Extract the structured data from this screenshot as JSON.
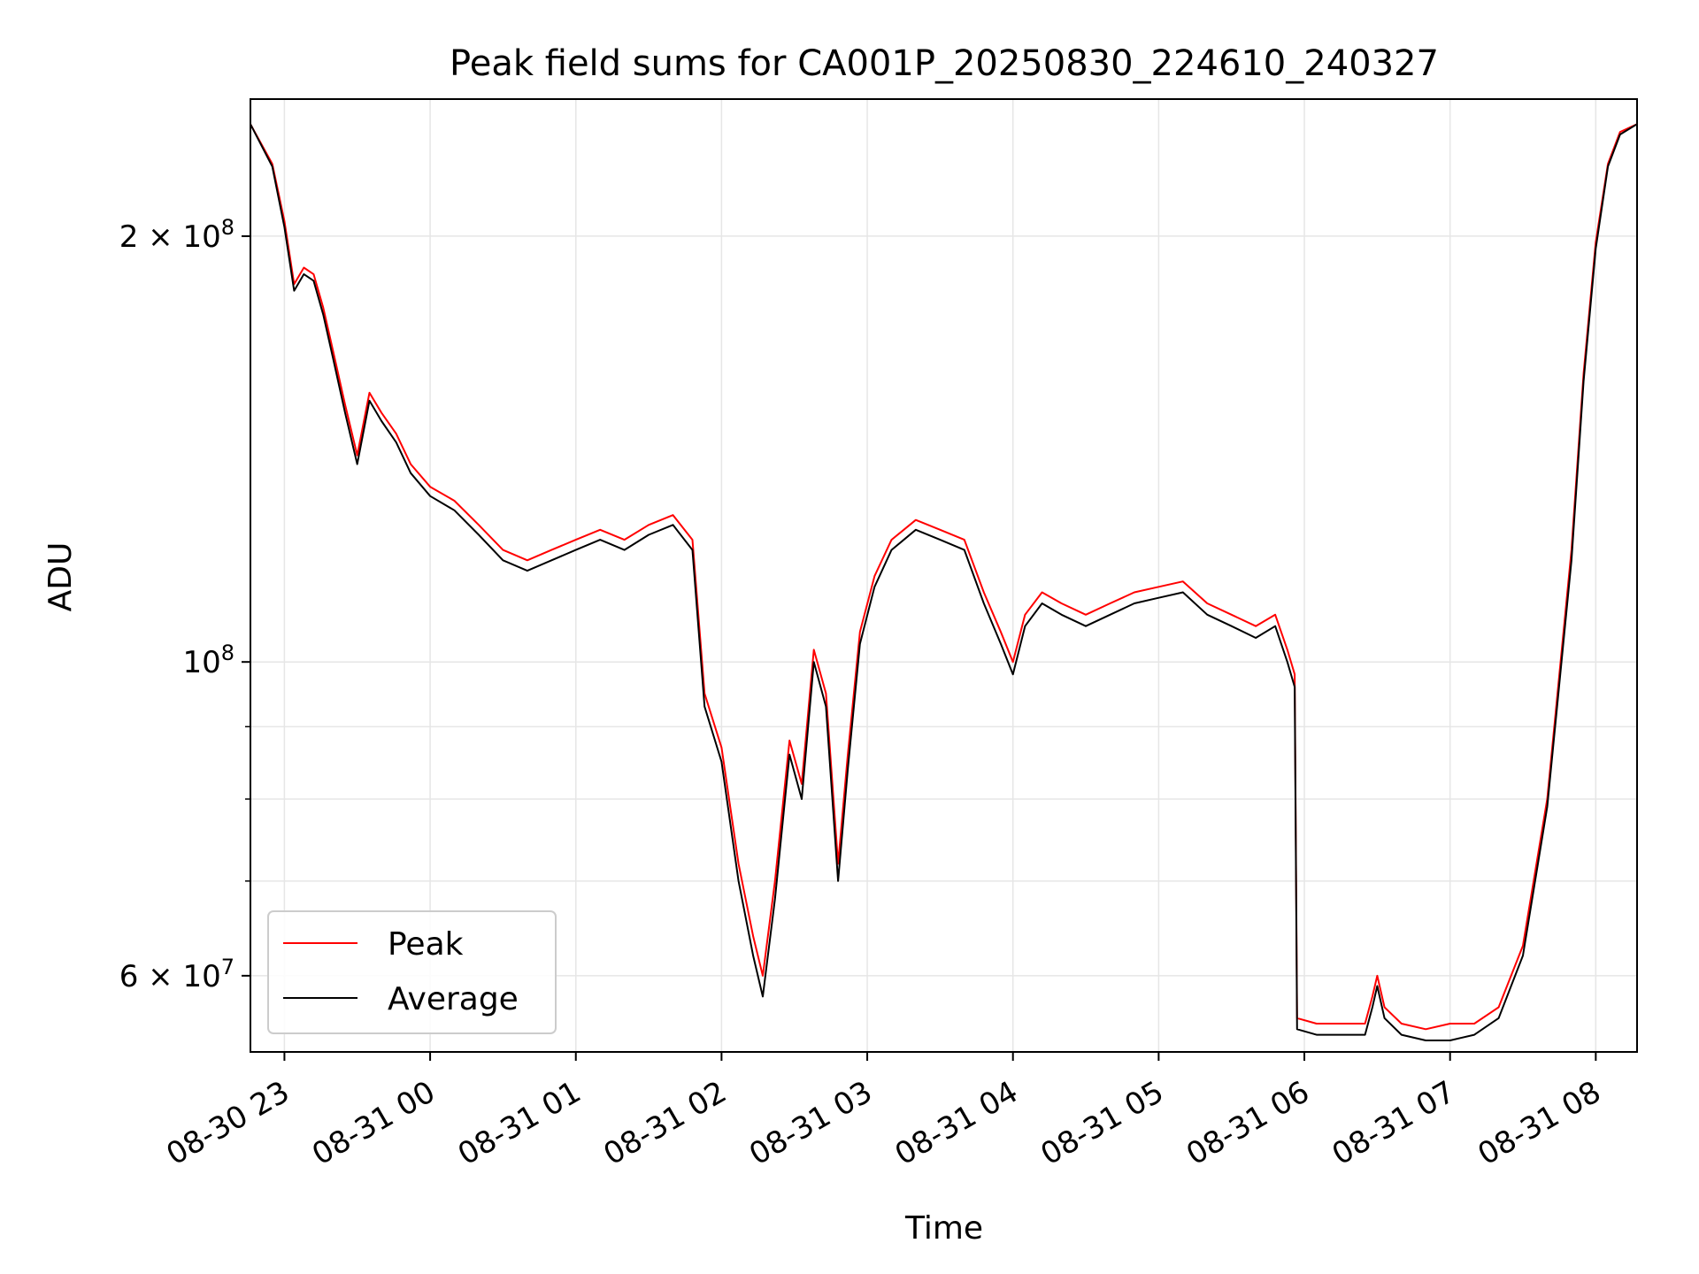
{
  "chart_data": {
    "type": "line",
    "title": "Peak field sums for CA001P_20250830_224610_240327",
    "xlabel": "Time",
    "ylabel": "ADU",
    "x_range": [
      "2025-08-30 22:46",
      "2025-08-31 08:17"
    ],
    "ylim": [
      53000000,
      250000000
    ],
    "yscale": "log",
    "grid": true,
    "legend_position": "lower-left",
    "x_ticks": [
      {
        "time": "2025-08-30 23:00",
        "label": "08-30 23"
      },
      {
        "time": "2025-08-31 00:00",
        "label": "08-31 00"
      },
      {
        "time": "2025-08-31 01:00",
        "label": "08-31 01"
      },
      {
        "time": "2025-08-31 02:00",
        "label": "08-31 02"
      },
      {
        "time": "2025-08-31 03:00",
        "label": "08-31 03"
      },
      {
        "time": "2025-08-31 04:00",
        "label": "08-31 04"
      },
      {
        "time": "2025-08-31 05:00",
        "label": "08-31 05"
      },
      {
        "time": "2025-08-31 06:00",
        "label": "08-31 06"
      },
      {
        "time": "2025-08-31 07:00",
        "label": "08-31 07"
      },
      {
        "time": "2025-08-31 08:00",
        "label": "08-31 08"
      }
    ],
    "y_ticks_major": [
      {
        "value": 60000000,
        "mantissa": "6",
        "exponent": "7"
      },
      {
        "value": 100000000,
        "mantissa": "",
        "exponent": "8"
      },
      {
        "value": 200000000,
        "mantissa": "2",
        "exponent": "8"
      }
    ],
    "y_ticks_minor": [
      70000000,
      80000000,
      90000000
    ],
    "series": [
      {
        "name": "Peak",
        "color": "#ff0000",
        "points": [
          [
            "2025-08-30 22:46",
            240000000.0
          ],
          [
            "2025-08-30 22:55",
            225000000.0
          ],
          [
            "2025-08-30 23:00",
            205000000.0
          ],
          [
            "2025-08-30 23:04",
            185000000.0
          ],
          [
            "2025-08-30 23:08",
            190000000.0
          ],
          [
            "2025-08-30 23:12",
            188000000.0
          ],
          [
            "2025-08-30 23:16",
            178000000.0
          ],
          [
            "2025-08-30 23:20",
            166000000.0
          ],
          [
            "2025-08-30 23:25",
            152000000.0
          ],
          [
            "2025-08-30 23:30",
            140000000.0
          ],
          [
            "2025-08-30 23:35",
            155000000.0
          ],
          [
            "2025-08-30 23:40",
            150000000.0
          ],
          [
            "2025-08-30 23:46",
            145000000.0
          ],
          [
            "2025-08-30 23:52",
            138000000.0
          ],
          [
            "2025-08-31 00:00",
            133000000.0
          ],
          [
            "2025-08-31 00:10",
            130000000.0
          ],
          [
            "2025-08-31 00:20",
            125000000.0
          ],
          [
            "2025-08-31 00:30",
            120000000.0
          ],
          [
            "2025-08-31 00:40",
            118000000.0
          ],
          [
            "2025-08-31 00:50",
            120000000.0
          ],
          [
            "2025-08-31 01:00",
            122000000.0
          ],
          [
            "2025-08-31 01:10",
            124000000.0
          ],
          [
            "2025-08-31 01:20",
            122000000.0
          ],
          [
            "2025-08-31 01:30",
            125000000.0
          ],
          [
            "2025-08-31 01:40",
            127000000.0
          ],
          [
            "2025-08-31 01:48",
            122000000.0
          ],
          [
            "2025-08-31 01:53",
            95000000.0
          ],
          [
            "2025-08-31 02:00",
            87000000.0
          ],
          [
            "2025-08-31 02:07",
            72000000.0
          ],
          [
            "2025-08-31 02:13",
            64000000.0
          ],
          [
            "2025-08-31 02:17",
            60000000.0
          ],
          [
            "2025-08-31 02:22",
            70000000.0
          ],
          [
            "2025-08-31 02:28",
            88000000.0
          ],
          [
            "2025-08-31 02:33",
            82000000.0
          ],
          [
            "2025-08-31 02:38",
            102000000.0
          ],
          [
            "2025-08-31 02:43",
            95000000.0
          ],
          [
            "2025-08-31 02:48",
            72000000.0
          ],
          [
            "2025-08-31 02:52",
            86000000.0
          ],
          [
            "2025-08-31 02:57",
            105000000.0
          ],
          [
            "2025-08-31 03:03",
            115000000.0
          ],
          [
            "2025-08-31 03:10",
            122000000.0
          ],
          [
            "2025-08-31 03:20",
            126000000.0
          ],
          [
            "2025-08-31 03:30",
            124000000.0
          ],
          [
            "2025-08-31 03:40",
            122000000.0
          ],
          [
            "2025-08-31 03:48",
            112000000.0
          ],
          [
            "2025-08-31 03:55",
            105000000.0
          ],
          [
            "2025-08-31 04:00",
            100000000.0
          ],
          [
            "2025-08-31 04:05",
            108000000.0
          ],
          [
            "2025-08-31 04:12",
            112000000.0
          ],
          [
            "2025-08-31 04:20",
            110000000.0
          ],
          [
            "2025-08-31 04:30",
            108000000.0
          ],
          [
            "2025-08-31 04:40",
            110000000.0
          ],
          [
            "2025-08-31 04:50",
            112000000.0
          ],
          [
            "2025-08-31 05:00",
            113000000.0
          ],
          [
            "2025-08-31 05:10",
            114000000.0
          ],
          [
            "2025-08-31 05:20",
            110000000.0
          ],
          [
            "2025-08-31 05:30",
            108000000.0
          ],
          [
            "2025-08-31 05:40",
            106000000.0
          ],
          [
            "2025-08-31 05:48",
            108000000.0
          ],
          [
            "2025-08-31 05:53",
            102000000.0
          ],
          [
            "2025-08-31 05:56",
            98000000.0
          ],
          [
            "2025-08-31 05:57",
            56000000.0
          ],
          [
            "2025-08-31 06:05",
            55500000.0
          ],
          [
            "2025-08-31 06:15",
            55500000.0
          ],
          [
            "2025-08-31 06:25",
            55500000.0
          ],
          [
            "2025-08-31 06:28",
            58000000.0
          ],
          [
            "2025-08-31 06:30",
            60000000.0
          ],
          [
            "2025-08-31 06:33",
            57000000.0
          ],
          [
            "2025-08-31 06:40",
            55500000.0
          ],
          [
            "2025-08-31 06:50",
            55000000.0
          ],
          [
            "2025-08-31 07:00",
            55500000.0
          ],
          [
            "2025-08-31 07:10",
            55500000.0
          ],
          [
            "2025-08-31 07:20",
            57000000.0
          ],
          [
            "2025-08-31 07:30",
            63000000.0
          ],
          [
            "2025-08-31 07:40",
            80000000.0
          ],
          [
            "2025-08-31 07:50",
            120000000.0
          ],
          [
            "2025-08-31 07:55",
            160000000.0
          ],
          [
            "2025-08-31 08:00",
            198000000.0
          ],
          [
            "2025-08-31 08:05",
            225000000.0
          ],
          [
            "2025-08-31 08:10",
            237000000.0
          ],
          [
            "2025-08-31 08:17",
            240000000.0
          ]
        ]
      },
      {
        "name": "Average",
        "color": "#000000",
        "points": [
          [
            "2025-08-30 22:46",
            240000000.0
          ],
          [
            "2025-08-30 22:55",
            224000000.0
          ],
          [
            "2025-08-30 23:00",
            203000000.0
          ],
          [
            "2025-08-30 23:04",
            183000000.0
          ],
          [
            "2025-08-30 23:08",
            188000000.0
          ],
          [
            "2025-08-30 23:12",
            186000000.0
          ],
          [
            "2025-08-30 23:16",
            176000000.0
          ],
          [
            "2025-08-30 23:20",
            164000000.0
          ],
          [
            "2025-08-30 23:25",
            150000000.0
          ],
          [
            "2025-08-30 23:30",
            138000000.0
          ],
          [
            "2025-08-30 23:35",
            153000000.0
          ],
          [
            "2025-08-30 23:40",
            148000000.0
          ],
          [
            "2025-08-30 23:46",
            143000000.0
          ],
          [
            "2025-08-30 23:52",
            136000000.0
          ],
          [
            "2025-08-31 00:00",
            131000000.0
          ],
          [
            "2025-08-31 00:10",
            128000000.0
          ],
          [
            "2025-08-31 00:20",
            123000000.0
          ],
          [
            "2025-08-31 00:30",
            118000000.0
          ],
          [
            "2025-08-31 00:40",
            116000000.0
          ],
          [
            "2025-08-31 00:50",
            118000000.0
          ],
          [
            "2025-08-31 01:00",
            120000000.0
          ],
          [
            "2025-08-31 01:10",
            122000000.0
          ],
          [
            "2025-08-31 01:20",
            120000000.0
          ],
          [
            "2025-08-31 01:30",
            123000000.0
          ],
          [
            "2025-08-31 01:40",
            125000000.0
          ],
          [
            "2025-08-31 01:48",
            120000000.0
          ],
          [
            "2025-08-31 01:53",
            93000000.0
          ],
          [
            "2025-08-31 02:00",
            85000000.0
          ],
          [
            "2025-08-31 02:07",
            70000000.0
          ],
          [
            "2025-08-31 02:13",
            62000000.0
          ],
          [
            "2025-08-31 02:17",
            58000000.0
          ],
          [
            "2025-08-31 02:22",
            68000000.0
          ],
          [
            "2025-08-31 02:28",
            86000000.0
          ],
          [
            "2025-08-31 02:33",
            80000000.0
          ],
          [
            "2025-08-31 02:38",
            100000000.0
          ],
          [
            "2025-08-31 02:43",
            93000000.0
          ],
          [
            "2025-08-31 02:48",
            70000000.0
          ],
          [
            "2025-08-31 02:52",
            84000000.0
          ],
          [
            "2025-08-31 02:57",
            103000000.0
          ],
          [
            "2025-08-31 03:03",
            113000000.0
          ],
          [
            "2025-08-31 03:10",
            120000000.0
          ],
          [
            "2025-08-31 03:20",
            124000000.0
          ],
          [
            "2025-08-31 03:30",
            122000000.0
          ],
          [
            "2025-08-31 03:40",
            120000000.0
          ],
          [
            "2025-08-31 03:48",
            110000000.0
          ],
          [
            "2025-08-31 03:55",
            103000000.0
          ],
          [
            "2025-08-31 04:00",
            98000000.0
          ],
          [
            "2025-08-31 04:05",
            106000000.0
          ],
          [
            "2025-08-31 04:12",
            110000000.0
          ],
          [
            "2025-08-31 04:20",
            108000000.0
          ],
          [
            "2025-08-31 04:30",
            106000000.0
          ],
          [
            "2025-08-31 04:40",
            108000000.0
          ],
          [
            "2025-08-31 04:50",
            110000000.0
          ],
          [
            "2025-08-31 05:00",
            111000000.0
          ],
          [
            "2025-08-31 05:10",
            112000000.0
          ],
          [
            "2025-08-31 05:20",
            108000000.0
          ],
          [
            "2025-08-31 05:30",
            106000000.0
          ],
          [
            "2025-08-31 05:40",
            104000000.0
          ],
          [
            "2025-08-31 05:48",
            106000000.0
          ],
          [
            "2025-08-31 05:53",
            100000000.0
          ],
          [
            "2025-08-31 05:56",
            96000000.0
          ],
          [
            "2025-08-31 05:57",
            55000000.0
          ],
          [
            "2025-08-31 06:05",
            54500000.0
          ],
          [
            "2025-08-31 06:15",
            54500000.0
          ],
          [
            "2025-08-31 06:25",
            54500000.0
          ],
          [
            "2025-08-31 06:28",
            57000000.0
          ],
          [
            "2025-08-31 06:30",
            59000000.0
          ],
          [
            "2025-08-31 06:33",
            56000000.0
          ],
          [
            "2025-08-31 06:40",
            54500000.0
          ],
          [
            "2025-08-31 06:50",
            54000000.0
          ],
          [
            "2025-08-31 07:00",
            54000000.0
          ],
          [
            "2025-08-31 07:10",
            54500000.0
          ],
          [
            "2025-08-31 07:20",
            56000000.0
          ],
          [
            "2025-08-31 07:30",
            62000000.0
          ],
          [
            "2025-08-31 07:40",
            79000000.0
          ],
          [
            "2025-08-31 07:50",
            118000000.0
          ],
          [
            "2025-08-31 07:55",
            158000000.0
          ],
          [
            "2025-08-31 08:00",
            196000000.0
          ],
          [
            "2025-08-31 08:05",
            224000000.0
          ],
          [
            "2025-08-31 08:10",
            236000000.0
          ],
          [
            "2025-08-31 08:17",
            240000000.0
          ]
        ]
      }
    ]
  }
}
